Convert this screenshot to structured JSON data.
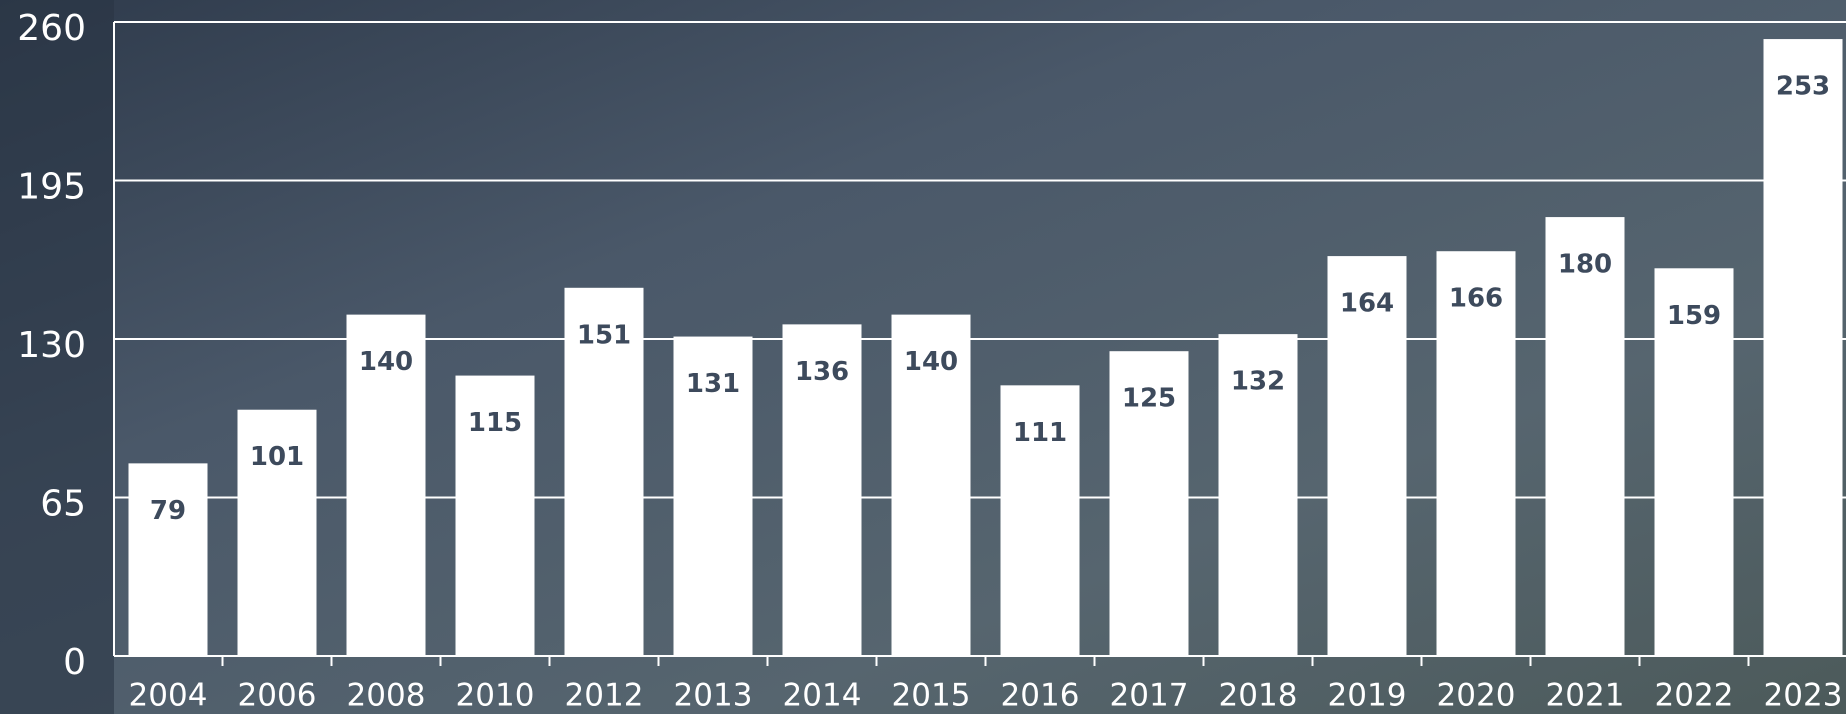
{
  "chart_data": {
    "type": "bar",
    "categories": [
      "2004",
      "2006",
      "2008",
      "2010",
      "2012",
      "2013",
      "2014",
      "2015",
      "2016",
      "2017",
      "2018",
      "2019",
      "2020",
      "2021",
      "2022",
      "2023"
    ],
    "values": [
      79,
      101,
      140,
      115,
      151,
      131,
      136,
      140,
      111,
      125,
      132,
      164,
      166,
      180,
      159,
      253
    ],
    "color": "#ffffff",
    "ylim": [
      0,
      260
    ],
    "yticks": [
      0,
      65,
      130,
      195,
      260
    ],
    "grid": true
  }
}
